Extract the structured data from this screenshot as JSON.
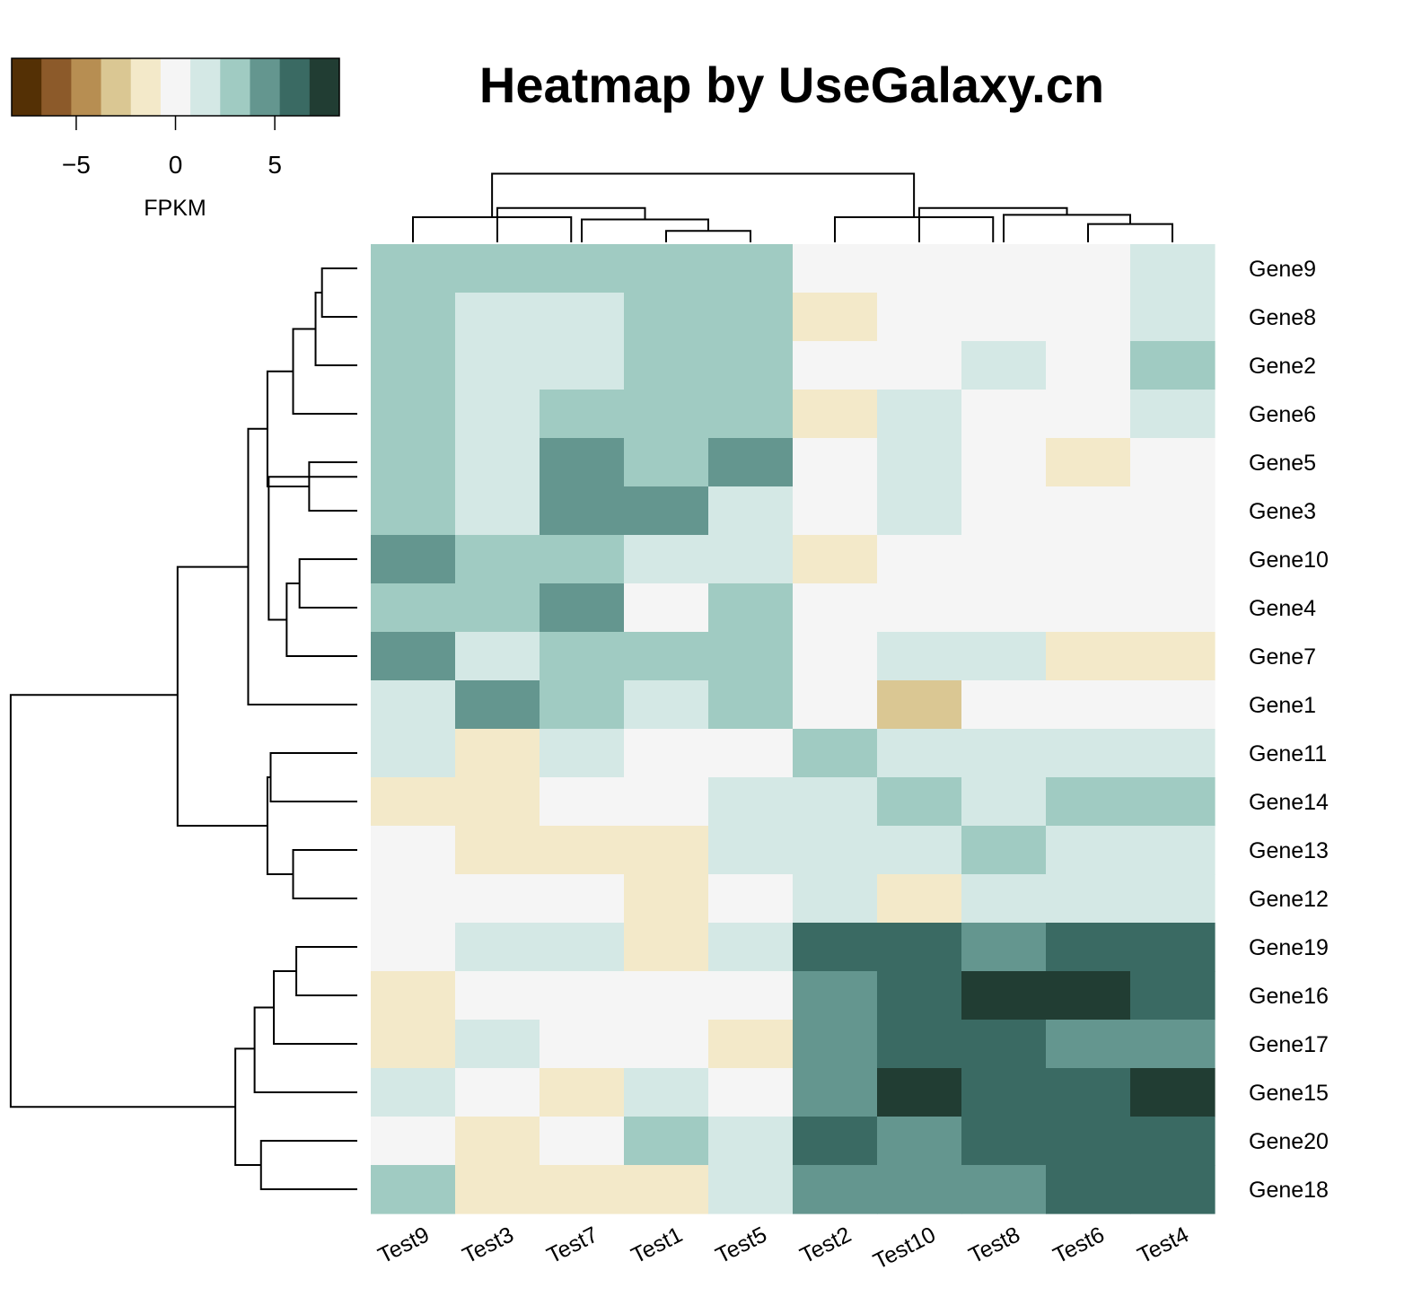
{
  "chart_data": {
    "type": "heatmap",
    "title": "Heatmap by UseGalaxy.cn",
    "columns": [
      "Test9",
      "Test3",
      "Test7",
      "Test1",
      "Test5",
      "Test2",
      "Test10",
      "Test8",
      "Test6",
      "Test4"
    ],
    "rows": [
      "Gene9",
      "Gene8",
      "Gene2",
      "Gene6",
      "Gene5",
      "Gene3",
      "Gene10",
      "Gene4",
      "Gene7",
      "Gene1",
      "Gene11",
      "Gene14",
      "Gene13",
      "Gene12",
      "Gene19",
      "Gene16",
      "Gene17",
      "Gene15",
      "Gene20",
      "Gene18"
    ],
    "values": [
      [
        3,
        3,
        3,
        3,
        3,
        0,
        0,
        0,
        0,
        1.5
      ],
      [
        3,
        1.5,
        1.5,
        3,
        3,
        -1.5,
        0,
        0,
        0,
        1.5
      ],
      [
        3,
        1.5,
        1.5,
        3,
        3,
        0,
        0,
        1.5,
        0,
        3
      ],
      [
        3,
        1.5,
        3,
        3,
        3,
        -1.5,
        1.5,
        0,
        0,
        1.5
      ],
      [
        3,
        1.5,
        4.5,
        3,
        4.5,
        0,
        1.5,
        0,
        -1.5,
        0
      ],
      [
        3,
        1.5,
        4.5,
        4.5,
        1.5,
        0,
        1.5,
        0,
        0,
        0
      ],
      [
        4.5,
        3,
        3,
        1.5,
        1.5,
        -1.5,
        0,
        0,
        0,
        0
      ],
      [
        3,
        3,
        4.5,
        0,
        3,
        0,
        0,
        0,
        0,
        0
      ],
      [
        4.5,
        1.5,
        3,
        3,
        3,
        0,
        1.5,
        1.5,
        -1.5,
        -1.5
      ],
      [
        1.5,
        4.5,
        3,
        1.5,
        3,
        0,
        -3,
        0,
        0,
        0
      ],
      [
        1.5,
        -1.5,
        1.5,
        0,
        0,
        3,
        1.5,
        1.5,
        1.5,
        1.5
      ],
      [
        -1.5,
        -1.5,
        0,
        0,
        1.5,
        1.5,
        3,
        1.5,
        3,
        3
      ],
      [
        0,
        -1.5,
        -1.5,
        -1.5,
        1.5,
        1.5,
        1.5,
        3,
        1.5,
        1.5
      ],
      [
        0,
        0,
        0,
        -1.5,
        0,
        1.5,
        -1.5,
        1.5,
        1.5,
        1.5
      ],
      [
        0,
        1.5,
        1.5,
        -1.5,
        1.5,
        6,
        6,
        4.5,
        6,
        6
      ],
      [
        -1.5,
        0,
        0,
        0,
        0,
        4.5,
        6,
        7.5,
        7.5,
        6
      ],
      [
        -1.5,
        1.5,
        0,
        0,
        -1.5,
        4.5,
        6,
        6,
        4.5,
        4.5
      ],
      [
        1.5,
        0,
        -1.5,
        1.5,
        0,
        4.5,
        7.5,
        6,
        6,
        7.5
      ],
      [
        0,
        -1.5,
        0,
        3,
        1.5,
        6,
        4.5,
        6,
        6,
        6
      ],
      [
        3,
        -1.5,
        -1.5,
        -1.5,
        1.5,
        4.5,
        4.5,
        4.5,
        6,
        6
      ]
    ],
    "color_scale": {
      "label": "FPKM",
      "min": -8.25,
      "max": 8.25,
      "ticks": [
        -5,
        0,
        5
      ],
      "tick_labels": [
        "−5",
        "0",
        "5"
      ],
      "colors": [
        "#543005",
        "#8c5a2a",
        "#b78e52",
        "#dac793",
        "#f3e9c9",
        "#f5f5f5",
        "#d4e8e5",
        "#a0cbc2",
        "#64968f",
        "#3a6a63",
        "#213d33"
      ]
    },
    "col_dendrogram": [
      {
        "a": [
          3,
          4
        ],
        "h": 0.5
      },
      {
        "a": [
          2,
          3.5
        ],
        "h": 1.0
      },
      {
        "a": [
          1,
          2.75
        ],
        "h": 1.5
      },
      {
        "a": [
          0,
          1.875
        ],
        "h": 1.1
      },
      {
        "a": [
          8,
          9
        ],
        "h": 0.8
      },
      {
        "a": [
          7,
          8.5
        ],
        "h": 1.2
      },
      {
        "a": [
          6,
          7.75
        ],
        "h": 1.5
      },
      {
        "a": [
          5,
          6.875
        ],
        "h": 1.1
      },
      {
        "a": [
          0.9375,
          5.9375
        ],
        "h": 3.0
      }
    ],
    "row_dendrogram": [
      {
        "a": [
          0,
          1
        ],
        "h": 0.55
      },
      {
        "a": [
          0.5,
          2
        ],
        "h": 0.65
      },
      {
        "a": [
          1.25,
          3
        ],
        "h": 1.0
      },
      {
        "a": [
          4,
          5
        ],
        "h": 0.75
      },
      {
        "a": [
          2.125,
          4.5
        ],
        "h": 1.4
      },
      {
        "a": [
          6,
          7
        ],
        "h": 0.9
      },
      {
        "a": [
          6.5,
          8
        ],
        "h": 1.1
      },
      {
        "a": [
          4.3,
          7.25
        ],
        "h": 1.38
      },
      {
        "a": [
          3.31,
          9
        ],
        "h": 1.7
      },
      {
        "a": [
          10,
          11
        ],
        "h": 1.35
      },
      {
        "a": [
          12,
          13
        ],
        "h": 1.0
      },
      {
        "a": [
          10.5,
          12.5
        ],
        "h": 1.4
      },
      {
        "a": [
          6.16,
          11.5
        ],
        "h": 2.8
      },
      {
        "a": [
          14,
          15
        ],
        "h": 0.95
      },
      {
        "a": [
          14.5,
          16
        ],
        "h": 1.3
      },
      {
        "a": [
          15.25,
          17
        ],
        "h": 1.6
      },
      {
        "a": [
          18,
          19
        ],
        "h": 1.5
      },
      {
        "a": [
          16.1,
          18.5
        ],
        "h": 1.9
      },
      {
        "a": [
          8.8,
          17.3
        ],
        "h": 5.4
      }
    ]
  }
}
